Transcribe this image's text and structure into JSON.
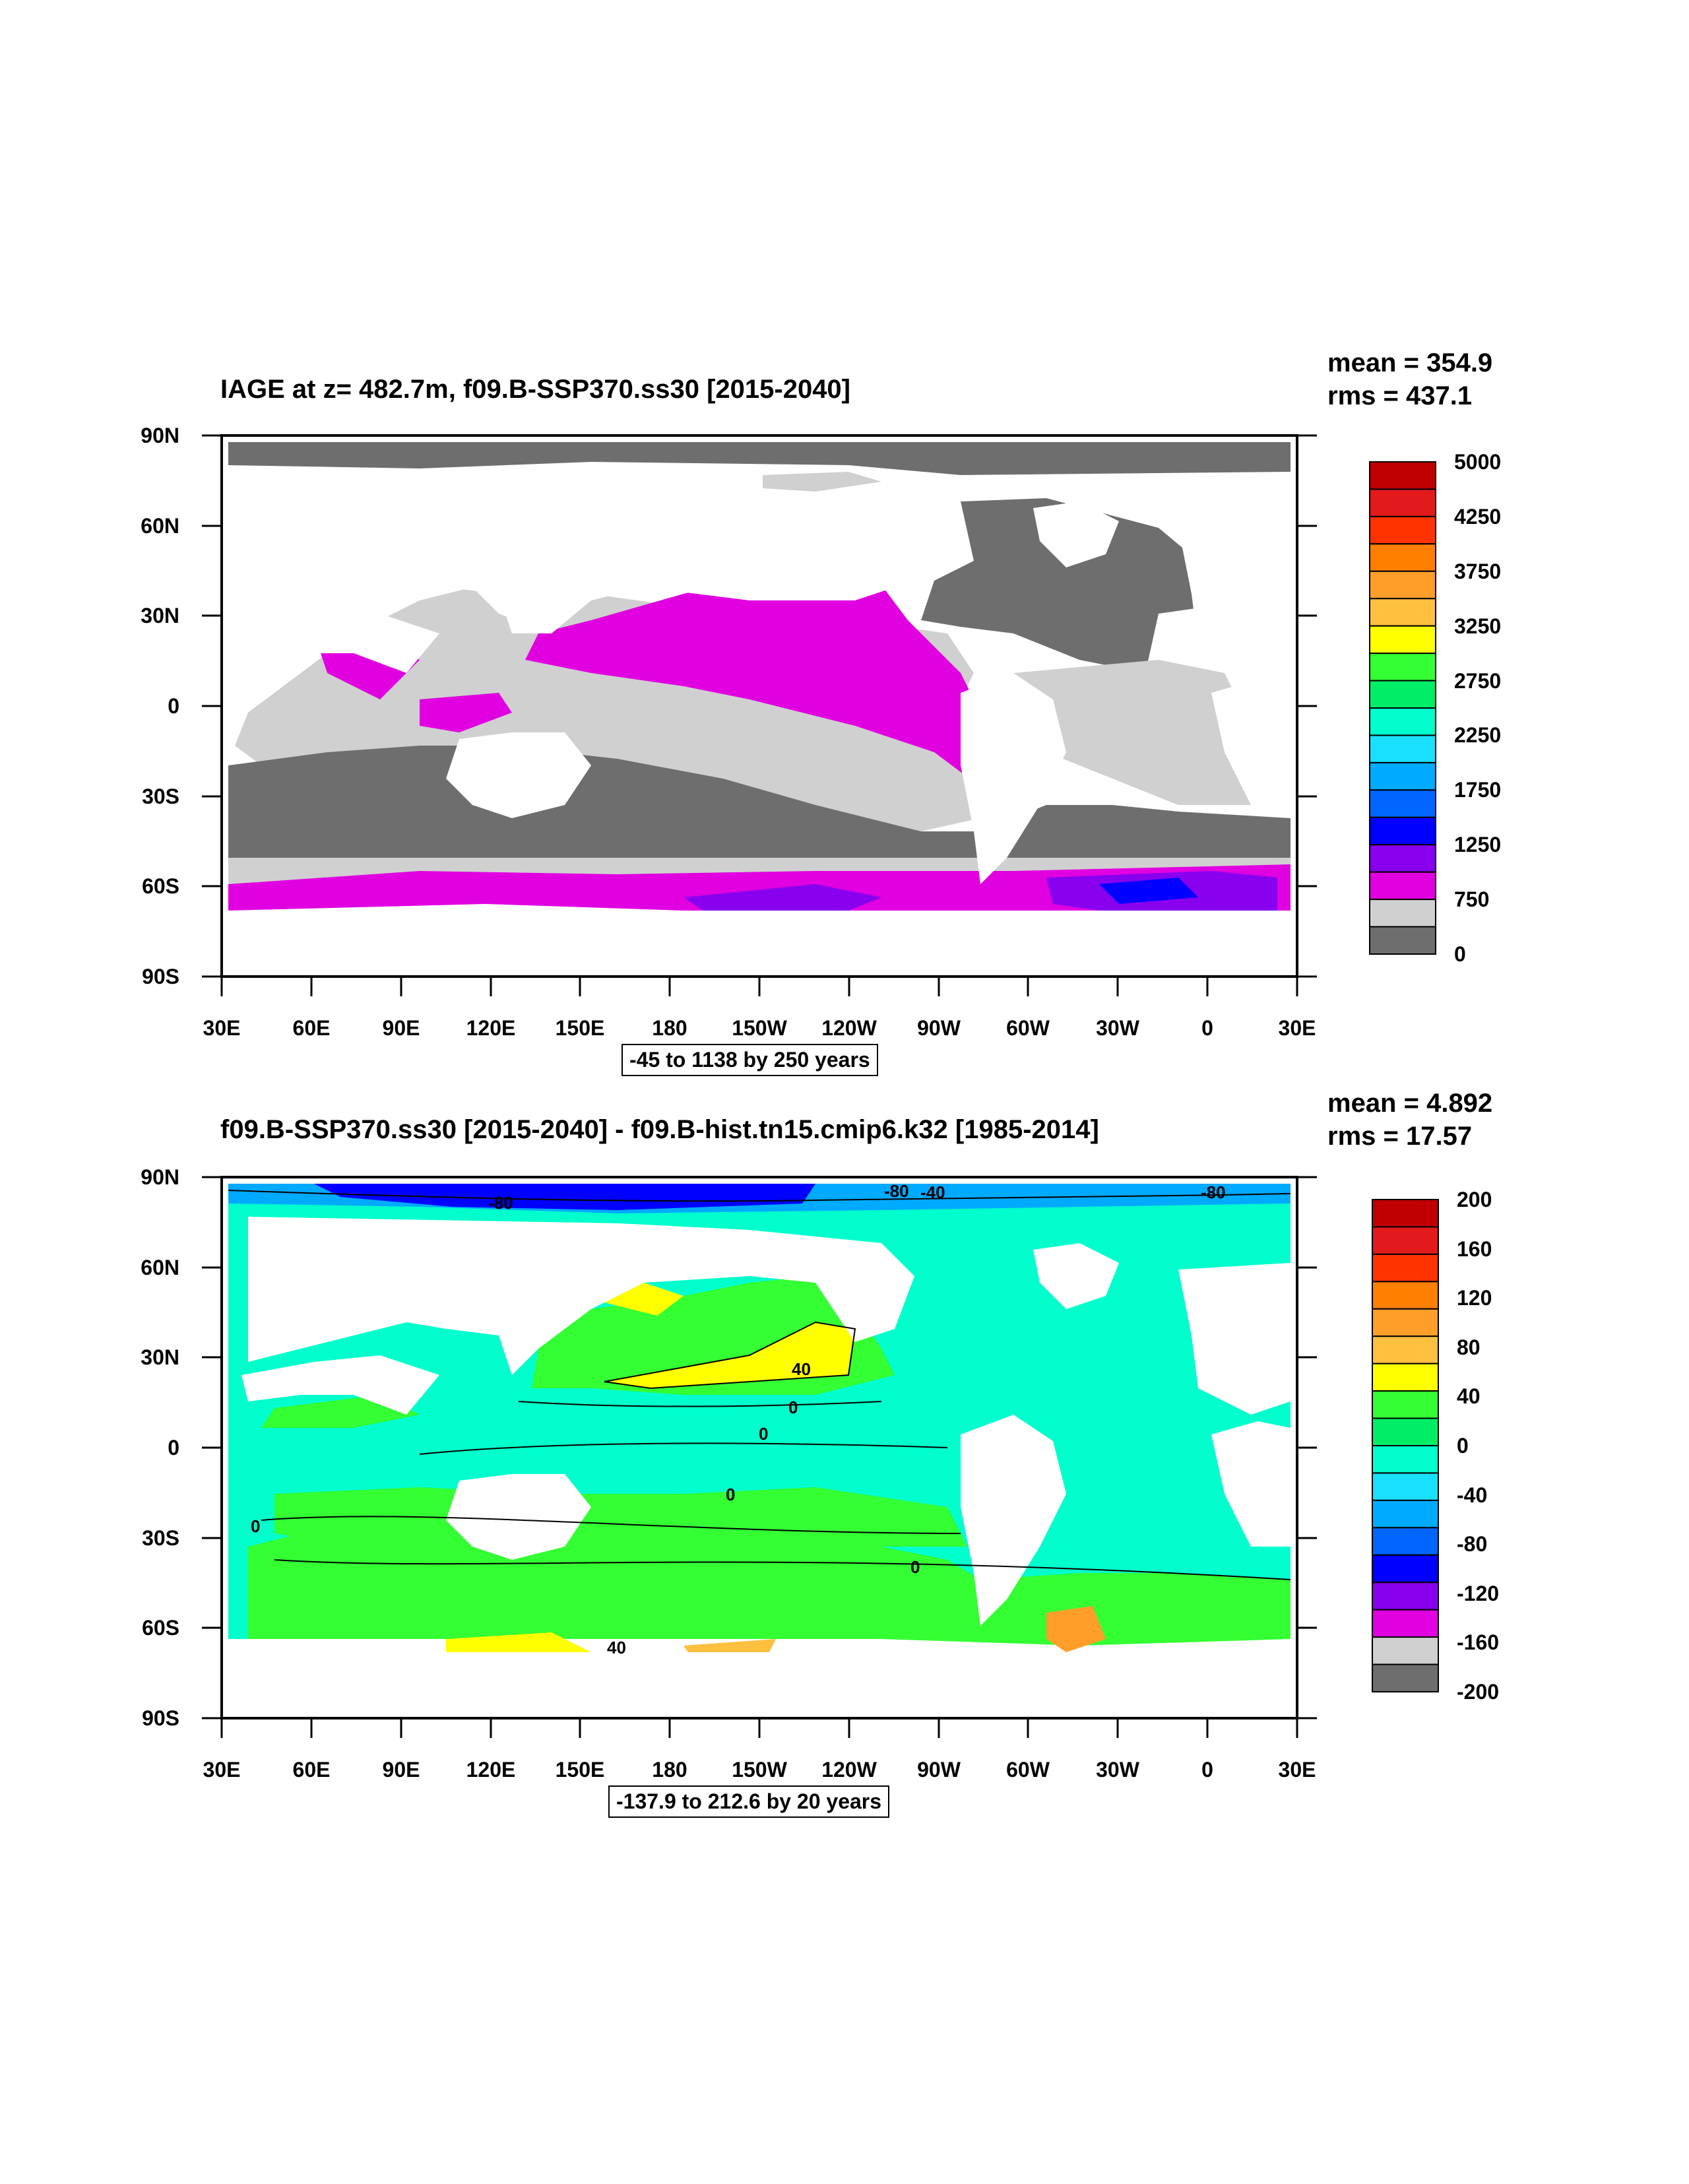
{
  "panels": [
    {
      "id": "top",
      "title": "IAGE at z= 482.7m, f09.B-SSP370.ss30 [2015-2040]",
      "stats": {
        "mean": "mean = 354.9",
        "rms": "rms = 437.1"
      },
      "lat_labels": [
        "90N",
        "60N",
        "30N",
        "0",
        "30S",
        "60S",
        "90S"
      ],
      "lon_labels": [
        "30E",
        "60E",
        "90E",
        "120E",
        "150E",
        "180",
        "150W",
        "120W",
        "90W",
        "60W",
        "30W",
        "0",
        "30E"
      ],
      "range_text": "-45 to 1138 by 250 years",
      "colorbar": {
        "labels": [
          "5000",
          "4250",
          "3750",
          "3250",
          "2750",
          "2250",
          "1750",
          "1250",
          "750",
          "0"
        ],
        "colors": [
          "#c00000",
          "#e31a1c",
          "#ff3300",
          "#ff7f00",
          "#ff9f2a",
          "#ffc040",
          "#ffff00",
          "#33ff33",
          "#00ee66",
          "#00ffcc",
          "#1ae0ff",
          "#00aaff",
          "#0066ff",
          "#0000ff",
          "#8800ee",
          "#e000e0",
          "#d0d0d0",
          "#6e6e6e"
        ]
      },
      "contour_labels": []
    },
    {
      "id": "bottom",
      "title": "f09.B-SSP370.ss30 [2015-2040] - f09.B-hist.tn15.cmip6.k32 [1985-2014]",
      "stats": {
        "mean": "mean = 4.892",
        "rms": "rms = 17.57"
      },
      "lat_labels": [
        "90N",
        "60N",
        "30N",
        "0",
        "30S",
        "60S",
        "90S"
      ],
      "lon_labels": [
        "30E",
        "60E",
        "90E",
        "120E",
        "150E",
        "180",
        "150W",
        "120W",
        "90W",
        "60W",
        "30W",
        "0",
        "30E"
      ],
      "range_text": "-137.9 to 212.6 by 20 years",
      "colorbar": {
        "labels": [
          "200",
          "160",
          "120",
          "80",
          "40",
          "0",
          "-40",
          "-80",
          "-120",
          "-160",
          "-200"
        ],
        "colors": [
          "#c00000",
          "#e31a1c",
          "#ff3300",
          "#ff7f00",
          "#ff9f2a",
          "#ffc040",
          "#ffff00",
          "#33ff33",
          "#00ee66",
          "#00ffcc",
          "#1ae0ff",
          "#00aaff",
          "#0066ff",
          "#0000ff",
          "#8800ee",
          "#e000e0",
          "#d0d0d0",
          "#6e6e6e"
        ]
      },
      "contour_labels": [
        "-80",
        "-80",
        "-40",
        "-80",
        "40",
        "0",
        "0",
        "0",
        "0",
        "0",
        "40"
      ]
    }
  ],
  "legend_palette_names": {
    "land": "white",
    "missing": "gray"
  }
}
